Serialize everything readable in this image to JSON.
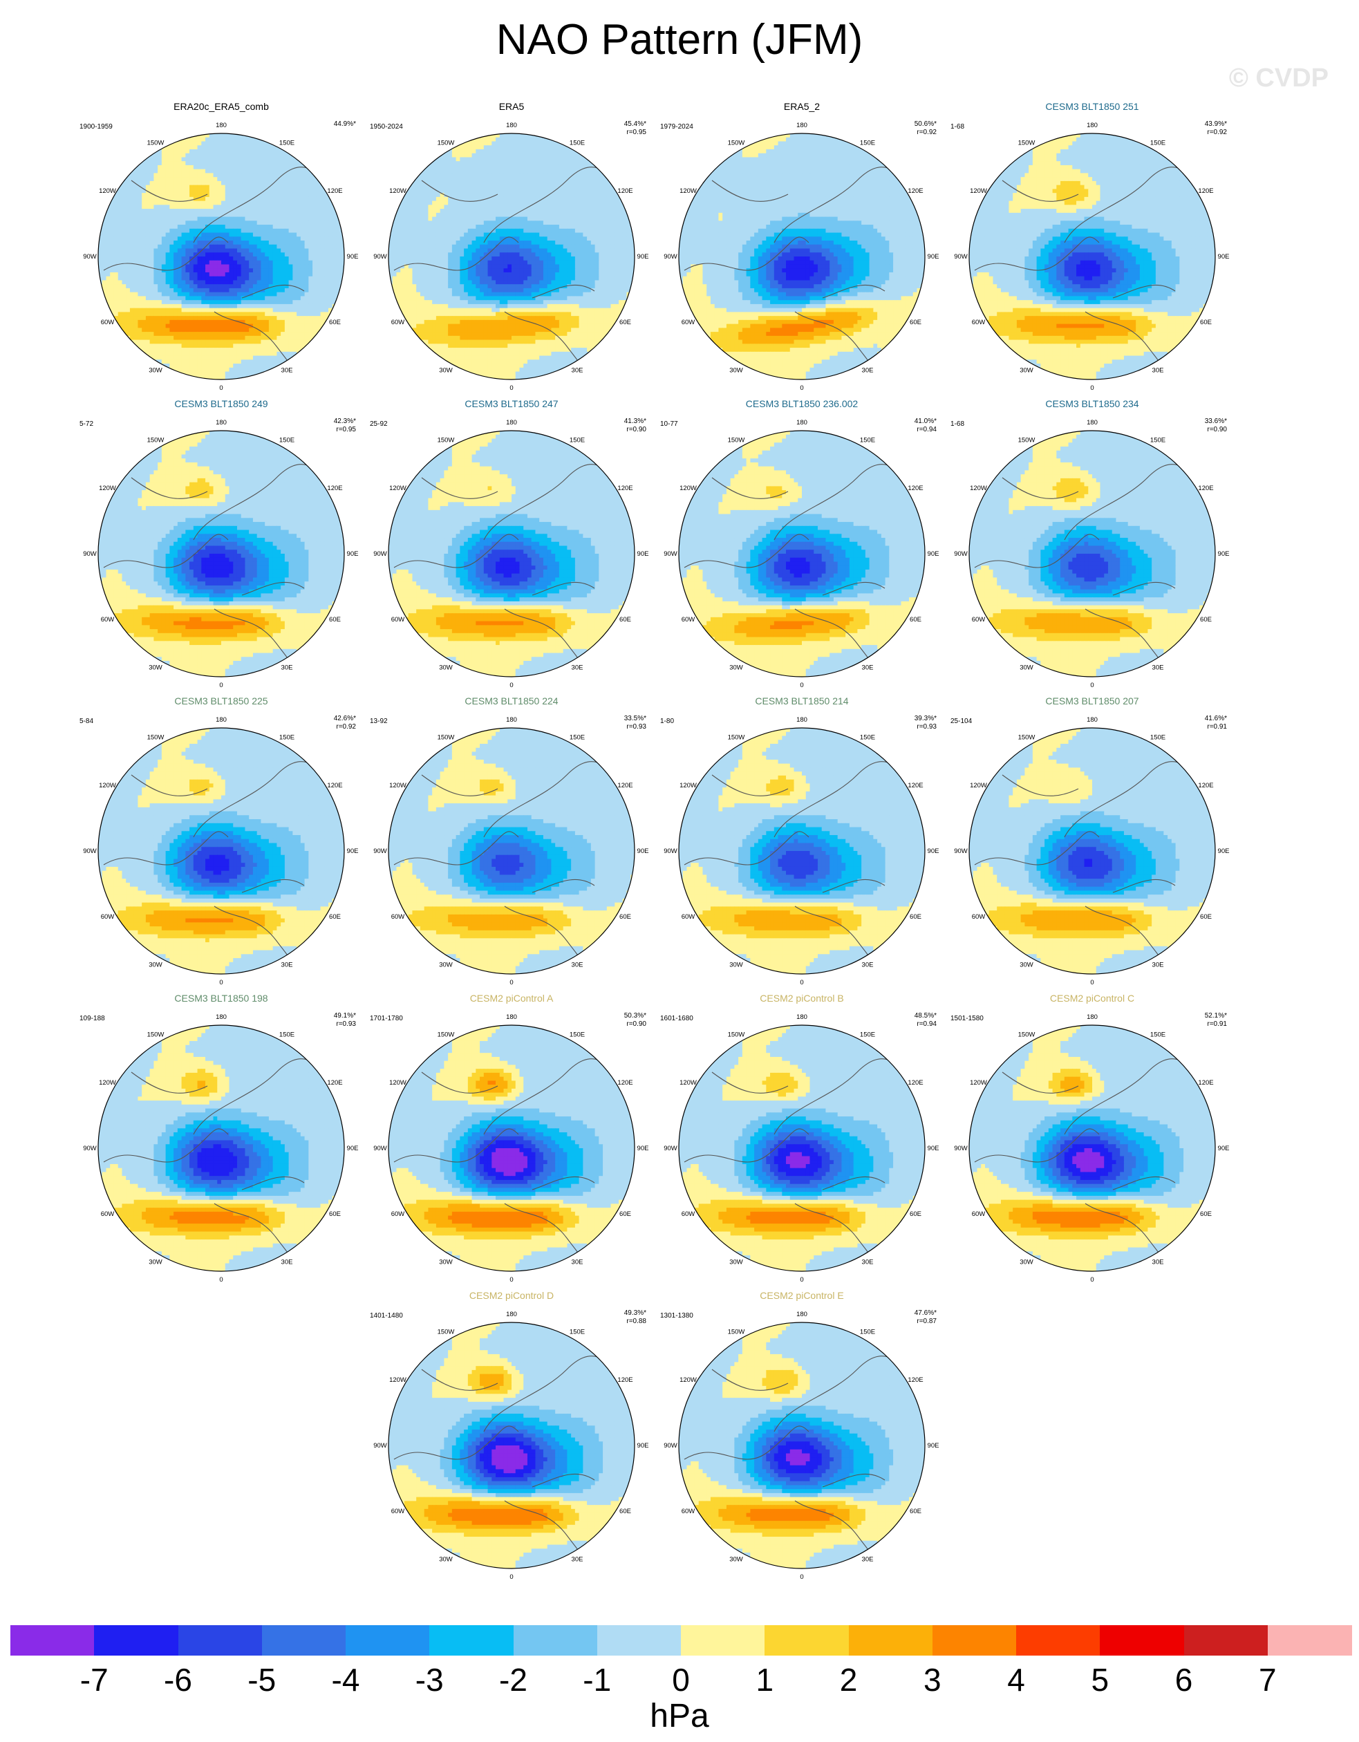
{
  "title": "NAO Pattern (JFM)",
  "watermark": "© CVDP",
  "lon_labels": [
    "180",
    "150E",
    "120E",
    "90E",
    "60E",
    "30E",
    "0",
    "30W",
    "60W",
    "90W",
    "120W",
    "150W"
  ],
  "title_colors": {
    "obs": "#000000",
    "cesm3_a": "#1e6a8c",
    "cesm3_b": "#5f8c6a",
    "cesm2": "#c8b464"
  },
  "panels": [
    {
      "title": "ERA20c_ERA5_comb",
      "group": "obs",
      "period": "1900-1959",
      "pct": "44.9%*",
      "r": "",
      "amp": 1.15,
      "nh": 0.55,
      "tilt": 0
    },
    {
      "title": "ERA5",
      "group": "obs",
      "period": "1950-2024",
      "pct": "45.4%*",
      "r": "r=0.95",
      "amp": 0.95,
      "nh": 0.05,
      "tilt": 5
    },
    {
      "title": "ERA5_2",
      "group": "obs",
      "period": "1979-2024",
      "pct": "50.6%*",
      "r": "r=0.92",
      "amp": 1.05,
      "nh": 0.0,
      "tilt": 10
    },
    {
      "title": "CESM3 BLT1850 251",
      "group": "cesm3_a",
      "period": "1-68",
      "pct": "43.9%*",
      "r": "r=0.92",
      "amp": 1.0,
      "nh": 0.7,
      "tilt": 0
    },
    {
      "title": "CESM3 BLT1850 249",
      "group": "cesm3_a",
      "period": "5-72",
      "pct": "42.3%*",
      "r": "r=0.95",
      "amp": 1.05,
      "nh": 0.6,
      "tilt": 0
    },
    {
      "title": "CESM3 BLT1850 247",
      "group": "cesm3_a",
      "period": "25-92",
      "pct": "41.3%*",
      "r": "r=0.90",
      "amp": 1.0,
      "nh": 0.45,
      "tilt": 0
    },
    {
      "title": "CESM3 BLT1850 236.002",
      "group": "cesm3_a",
      "period": "10-77",
      "pct": "41.0%*",
      "r": "r=0.94",
      "amp": 1.0,
      "nh": 0.5,
      "tilt": 5
    },
    {
      "title": "CESM3 BLT1850 234",
      "group": "cesm3_a",
      "period": "1-68",
      "pct": "33.6%*",
      "r": "r=0.90",
      "amp": 0.9,
      "nh": 0.7,
      "tilt": 0
    },
    {
      "title": "CESM3 BLT1850 225",
      "group": "cesm3_b",
      "period": "5-84",
      "pct": "42.6%*",
      "r": "r=0.92",
      "amp": 1.0,
      "nh": 0.55,
      "tilt": 0
    },
    {
      "title": "CESM3 BLT1850 224",
      "group": "cesm3_b",
      "period": "13-92",
      "pct": "33.5%*",
      "r": "r=0.93",
      "amp": 0.85,
      "nh": 0.55,
      "tilt": 0
    },
    {
      "title": "CESM3 BLT1850 214",
      "group": "cesm3_b",
      "period": "1-80",
      "pct": "39.3%*",
      "r": "r=0.93",
      "amp": 0.9,
      "nh": 0.6,
      "tilt": 0
    },
    {
      "title": "CESM3 BLT1850 207",
      "group": "cesm3_b",
      "period": "25-104",
      "pct": "41.6%*",
      "r": "r=0.91",
      "amp": 0.95,
      "nh": 0.4,
      "tilt": 0
    },
    {
      "title": "CESM3 BLT1850 198",
      "group": "cesm3_b",
      "period": "109-188",
      "pct": "49.1%*",
      "r": "r=0.93",
      "amp": 1.1,
      "nh": 0.8,
      "tilt": 0
    },
    {
      "title": "CESM2 piControl A",
      "group": "cesm2",
      "period": "1701-1780",
      "pct": "50.3%*",
      "r": "r=0.90",
      "amp": 1.25,
      "nh": 1.1,
      "tilt": 0
    },
    {
      "title": "CESM2 piControl B",
      "group": "cesm2",
      "period": "1601-1680",
      "pct": "48.5%*",
      "r": "r=0.94",
      "amp": 1.15,
      "nh": 0.7,
      "tilt": 0
    },
    {
      "title": "CESM2 piControl C",
      "group": "cesm2",
      "period": "1501-1580",
      "pct": "52.1%*",
      "r": "r=0.91",
      "amp": 1.2,
      "nh": 0.95,
      "tilt": 0
    },
    {
      "title": "CESM2 piControl D",
      "group": "cesm2",
      "period": "1401-1480",
      "pct": "49.3%*",
      "r": "r=0.88",
      "amp": 1.25,
      "nh": 1.0,
      "tilt": 0
    },
    {
      "title": "CESM2 piControl E",
      "group": "cesm2",
      "period": "1301-1380",
      "pct": "47.6%*",
      "r": "r=0.87",
      "amp": 1.15,
      "nh": 0.75,
      "tilt": 0
    }
  ],
  "colorbar": {
    "colors": [
      "#8a2be8",
      "#1f1ff2",
      "#2a45e6",
      "#3572e6",
      "#1f93f2",
      "#08bdf4",
      "#74c6f2",
      "#b0dcf4",
      "#fff59b",
      "#fcd631",
      "#fcb009",
      "#fd8400",
      "#fd3d00",
      "#ee0000",
      "#cd1f1f",
      "#fbb3b3"
    ],
    "ticks": [
      "-7",
      "-6",
      "-5",
      "-4",
      "-3",
      "-2",
      "-1",
      "0",
      "1",
      "2",
      "3",
      "4",
      "5",
      "6",
      "7"
    ],
    "units": "hPa"
  }
}
